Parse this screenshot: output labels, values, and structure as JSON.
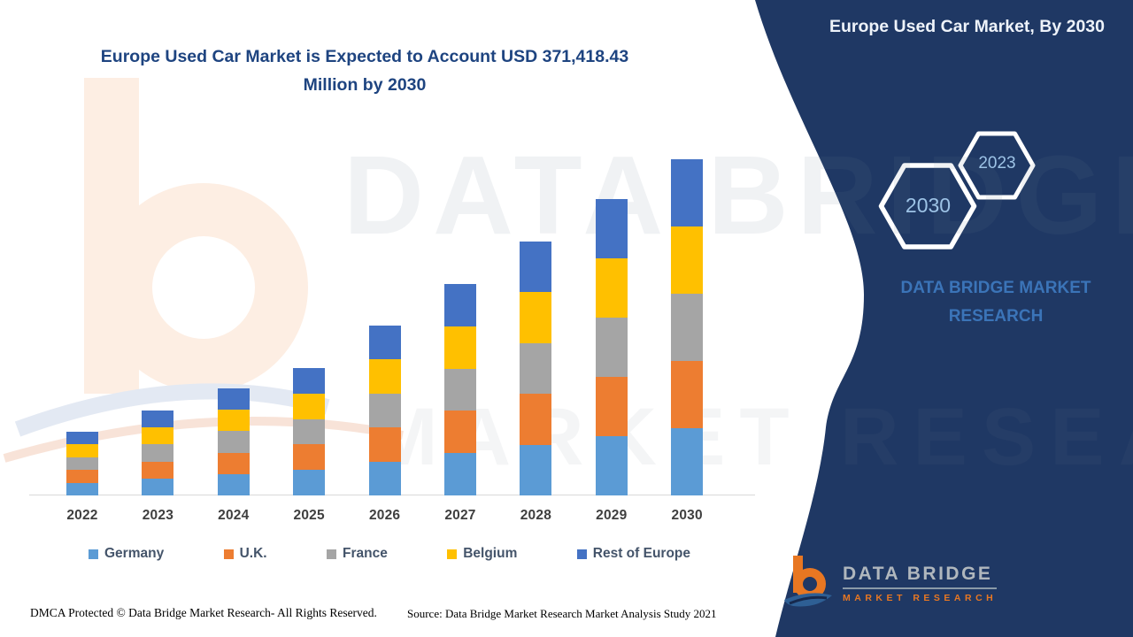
{
  "page": {
    "headline": "Europe Used Car Market is Expected to Account USD 371,418.43 Million by 2030",
    "side_panel": {
      "title": "Europe Used Car Market, By 2030",
      "hexagons": [
        {
          "label": "2030"
        },
        {
          "label": "2023"
        }
      ],
      "brand_caption": "DATA BRIDGE MARKET RESEARCH"
    },
    "watermark": {
      "line1": "DATA BRIDGE",
      "line2": "MARKET RESEARCH"
    },
    "footer": {
      "dmca": "DMCA Protected © Data Bridge Market Research- All Rights Reserved.",
      "source": "Source: Data Bridge Market Research Market Analysis Study 2021"
    },
    "logo": {
      "name": "DATA BRIDGE",
      "tagline": "MARKET RESEARCH"
    },
    "colors": {
      "panel_navy": "#1f3864",
      "headline_blue": "#1e4480",
      "caption_blue": "#3b74b8",
      "hexagon_label_blue": "#9dc3e6",
      "legend_text": "#44546a",
      "axis_text": "#3f3f3f",
      "logo_orange": "#e87722",
      "logo_gray": "#b0b7bd"
    }
  },
  "chart_data": {
    "type": "bar",
    "stacked": true,
    "title": "Europe Used Car Market is Expected to Account USD 371,418.43 Million by 2030",
    "unit": "USD Million",
    "categories": [
      "2022",
      "2023",
      "2024",
      "2025",
      "2026",
      "2027",
      "2028",
      "2029",
      "2030"
    ],
    "series": [
      {
        "name": "Germany",
        "color": "#5b9bd5",
        "values": [
          14075,
          18766,
          23653,
          28149,
          37532,
          46720,
          56103,
          65486,
          74283.7
        ]
      },
      {
        "name": "U.K.",
        "color": "#ed7d31",
        "values": [
          14075,
          18766,
          23653,
          28149,
          37532,
          46720,
          56103,
          65486,
          74283.7
        ]
      },
      {
        "name": "France",
        "color": "#a5a5a5",
        "values": [
          14075,
          18766,
          23653,
          28149,
          37532,
          46720,
          56103,
          65486,
          74283.7
        ]
      },
      {
        "name": "Belgium",
        "color": "#ffc000",
        "values": [
          14075,
          18766,
          23653,
          28149,
          37532,
          46720,
          56103,
          65486,
          74283.7
        ]
      },
      {
        "name": "Rest of Europe",
        "color": "#4472c4",
        "values": [
          14075,
          18766,
          23653,
          28149,
          37532,
          46720,
          56103,
          65486,
          74283.7
        ]
      }
    ],
    "totals_usd_million": [
      70373,
      93830,
      118265,
      140746,
      187661,
      233599,
      280514,
      327429,
      371418.43
    ],
    "labeled_value": "Only the 2030 total (USD 371,418.43 Million) is printed on the image; all other values are estimated from bar heights with five approximately equal segments per bar.",
    "axes": {
      "y_axis_visible": false,
      "gridlines": false,
      "x_labels": [
        "2022",
        "2023",
        "2024",
        "2025",
        "2026",
        "2027",
        "2028",
        "2029",
        "2030"
      ]
    },
    "legend_position": "bottom"
  }
}
